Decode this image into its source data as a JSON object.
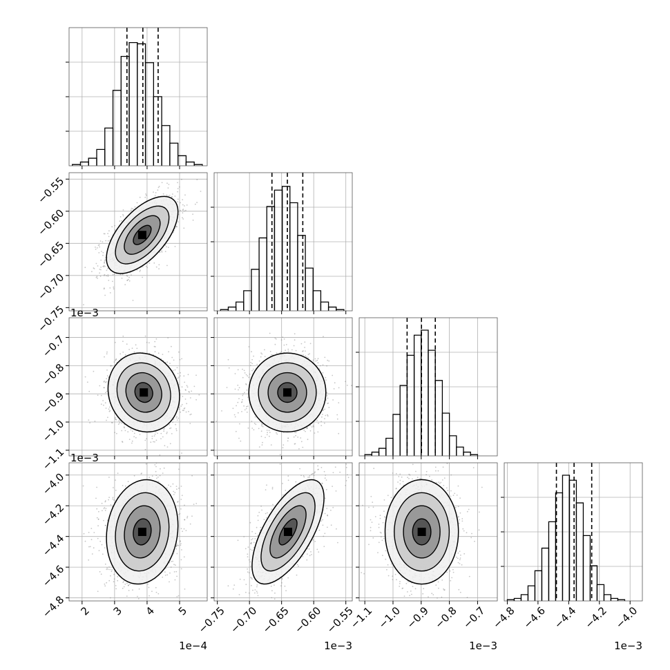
{
  "chart_data": {
    "type": "corner",
    "dimensions": [
      {
        "ticks": [
          2,
          3,
          4,
          5
        ],
        "tick_labels": [
          "2",
          "3",
          "4",
          "5"
        ],
        "range": [
          1.6,
          5.85
        ],
        "offset_label": "1e−4",
        "quantiles": [
          3.38,
          3.87,
          4.34
        ],
        "hist_bins": [
          1.7,
          1.95,
          2.2,
          2.45,
          2.7,
          2.95,
          3.2,
          3.45,
          3.7,
          3.95,
          4.2,
          4.45,
          4.7,
          4.95,
          5.2,
          5.45,
          5.7
        ],
        "hist_counts": [
          0.01,
          0.03,
          0.06,
          0.13,
          0.3,
          0.6,
          0.87,
          0.98,
          0.97,
          0.82,
          0.55,
          0.32,
          0.18,
          0.08,
          0.03,
          0.01
        ]
      },
      {
        "ticks": [
          -0.75,
          -0.7,
          -0.65,
          -0.6,
          -0.55
        ],
        "tick_labels": [
          "−0.75",
          "−0.70",
          "−0.65",
          "−0.60",
          "−0.55"
        ],
        "range": [
          -0.755,
          -0.54
        ],
        "offset_label": "1e−3",
        "quantiles": [
          -0.665,
          -0.641,
          -0.617
        ],
        "hist_bins": [
          -0.745,
          -0.733,
          -0.721,
          -0.709,
          -0.697,
          -0.685,
          -0.673,
          -0.661,
          -0.649,
          -0.637,
          -0.625,
          -0.613,
          -0.601,
          -0.589,
          -0.577,
          -0.565,
          -0.553
        ],
        "hist_counts": [
          0.01,
          0.03,
          0.07,
          0.16,
          0.33,
          0.58,
          0.83,
          0.96,
          0.99,
          0.86,
          0.6,
          0.34,
          0.16,
          0.07,
          0.03,
          0.01
        ]
      },
      {
        "ticks": [
          -1.1,
          -1.0,
          -0.9,
          -0.8,
          -0.7
        ],
        "tick_labels": [
          "−1.1",
          "−1.0",
          "−0.9",
          "−0.8",
          "−0.7"
        ],
        "range": [
          -1.12,
          -0.63
        ],
        "offset_label": "1e−3",
        "quantiles": [
          -0.95,
          -0.899,
          -0.85
        ],
        "hist_bins": [
          -1.1,
          -1.075,
          -1.05,
          -1.025,
          -1.0,
          -0.975,
          -0.95,
          -0.925,
          -0.9,
          -0.875,
          -0.85,
          -0.825,
          -0.8,
          -0.775,
          -0.75,
          -0.725,
          -0.7
        ],
        "hist_counts": [
          0.01,
          0.03,
          0.06,
          0.14,
          0.33,
          0.56,
          0.8,
          0.96,
          1.0,
          0.84,
          0.6,
          0.34,
          0.16,
          0.07,
          0.03,
          0.01
        ]
      },
      {
        "ticks": [
          -4.8,
          -4.6,
          -4.4,
          -4.2,
          -4.0
        ],
        "tick_labels": [
          "−4.8",
          "−4.6",
          "−4.4",
          "−4.2",
          "−4.0"
        ],
        "range": [
          -4.82,
          -3.92
        ],
        "offset_label": "1e−3",
        "quantiles": [
          -4.48,
          -4.365,
          -4.25
        ],
        "hist_bins": [
          -4.8,
          -4.755,
          -4.71,
          -4.665,
          -4.62,
          -4.575,
          -4.53,
          -4.485,
          -4.44,
          -4.395,
          -4.35,
          -4.305,
          -4.26,
          -4.215,
          -4.17,
          -4.125,
          -4.08,
          -4.035
        ],
        "hist_counts": [
          0.01,
          0.02,
          0.05,
          0.12,
          0.24,
          0.42,
          0.63,
          0.86,
          1.0,
          0.96,
          0.78,
          0.52,
          0.28,
          0.13,
          0.05,
          0.02,
          0.01
        ]
      }
    ],
    "pair_panels": [
      {
        "row": 1,
        "col": 0,
        "center": [
          3.85,
          -0.637
        ],
        "spread": [
          0.55,
          0.03
        ],
        "correlation": 0.6
      },
      {
        "row": 2,
        "col": 0,
        "center": [
          3.9,
          -0.895
        ],
        "spread": [
          0.55,
          0.07
        ],
        "correlation": -0.1
      },
      {
        "row": 2,
        "col": 1,
        "center": [
          -0.641,
          -0.895
        ],
        "spread": [
          0.03,
          0.07
        ],
        "correlation": 0.0
      },
      {
        "row": 3,
        "col": 0,
        "center": [
          3.85,
          -4.37
        ],
        "spread": [
          0.55,
          0.17
        ],
        "correlation": 0.12
      },
      {
        "row": 3,
        "col": 1,
        "center": [
          -0.64,
          -4.37
        ],
        "spread": [
          0.028,
          0.17
        ],
        "correlation": 0.65
      },
      {
        "row": 3,
        "col": 2,
        "center": [
          -0.898,
          -4.37
        ],
        "spread": [
          0.065,
          0.17
        ],
        "correlation": 0.0
      }
    ],
    "contour_levels_sigma": [
      0.5,
      1.0,
      1.5,
      2.0
    ],
    "grid": true,
    "colors": {
      "line": "#000000",
      "grid": "#b0b0b0",
      "points": "#7f7f7f"
    }
  }
}
